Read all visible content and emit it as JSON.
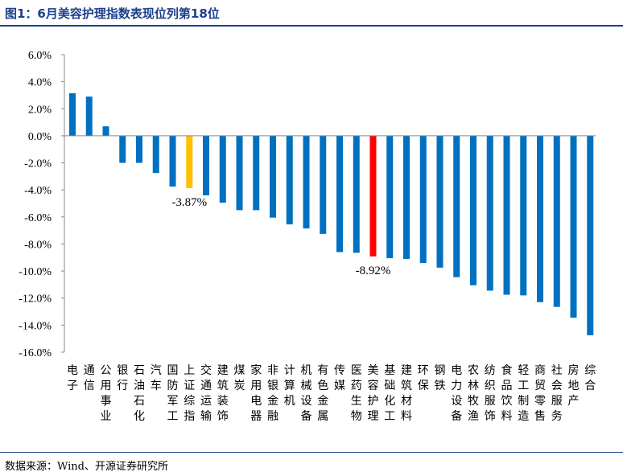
{
  "header": {
    "title": "图1：6月美容护理指数表现位列第18位"
  },
  "footer": {
    "source": "数据来源：Wind、开源证券研究所"
  },
  "chart_data": {
    "type": "bar",
    "title": "",
    "xlabel": "",
    "ylabel": "",
    "ylim": [
      -16,
      6
    ],
    "yticks": [
      6,
      4,
      2,
      0,
      -2,
      -4,
      -6,
      -8,
      -10,
      -12,
      -14,
      -16
    ],
    "ytick_labels": [
      "6.0%",
      "4.0%",
      "2.0%",
      "0.0%",
      "-2.0%",
      "-4.0%",
      "-6.0%",
      "-8.0%",
      "-10.0%",
      "-12.0%",
      "-14.0%",
      "-16.0%"
    ],
    "grid": false,
    "legend": "none",
    "categories": [
      "电子",
      "通信",
      "公用事业",
      "银行",
      "石油石化",
      "汽车",
      "国防军工",
      "上证综指",
      "交通运输",
      "建筑装饰",
      "煤炭",
      "家用电器",
      "非银金融",
      "计算机",
      "机械设备",
      "有色金属",
      "传媒",
      "医药生物",
      "美容护理",
      "基础化工",
      "建筑材料",
      "环保",
      "钢铁",
      "电力设备",
      "农林牧渔",
      "纺织服饰",
      "食品饮料",
      "轻工制造",
      "商贸零售",
      "社会服务",
      "房地产",
      "综合"
    ],
    "values": [
      3.15,
      2.9,
      0.7,
      -2.0,
      -2.0,
      -2.75,
      -3.75,
      -3.87,
      -4.4,
      -4.95,
      -5.5,
      -5.5,
      -6.05,
      -6.55,
      -6.85,
      -7.25,
      -8.6,
      -8.65,
      -8.92,
      -9.05,
      -9.1,
      -9.4,
      -9.75,
      -10.45,
      -11.05,
      -11.45,
      -11.75,
      -11.8,
      -12.3,
      -12.65,
      -13.45,
      -14.75
    ],
    "highlights": [
      {
        "category": "上证综指",
        "color": "#ffc000",
        "label": "-3.87%"
      },
      {
        "category": "美容护理",
        "color": "#ff0000",
        "label": "-8.92%"
      }
    ],
    "bar_color": "#0070c0"
  }
}
